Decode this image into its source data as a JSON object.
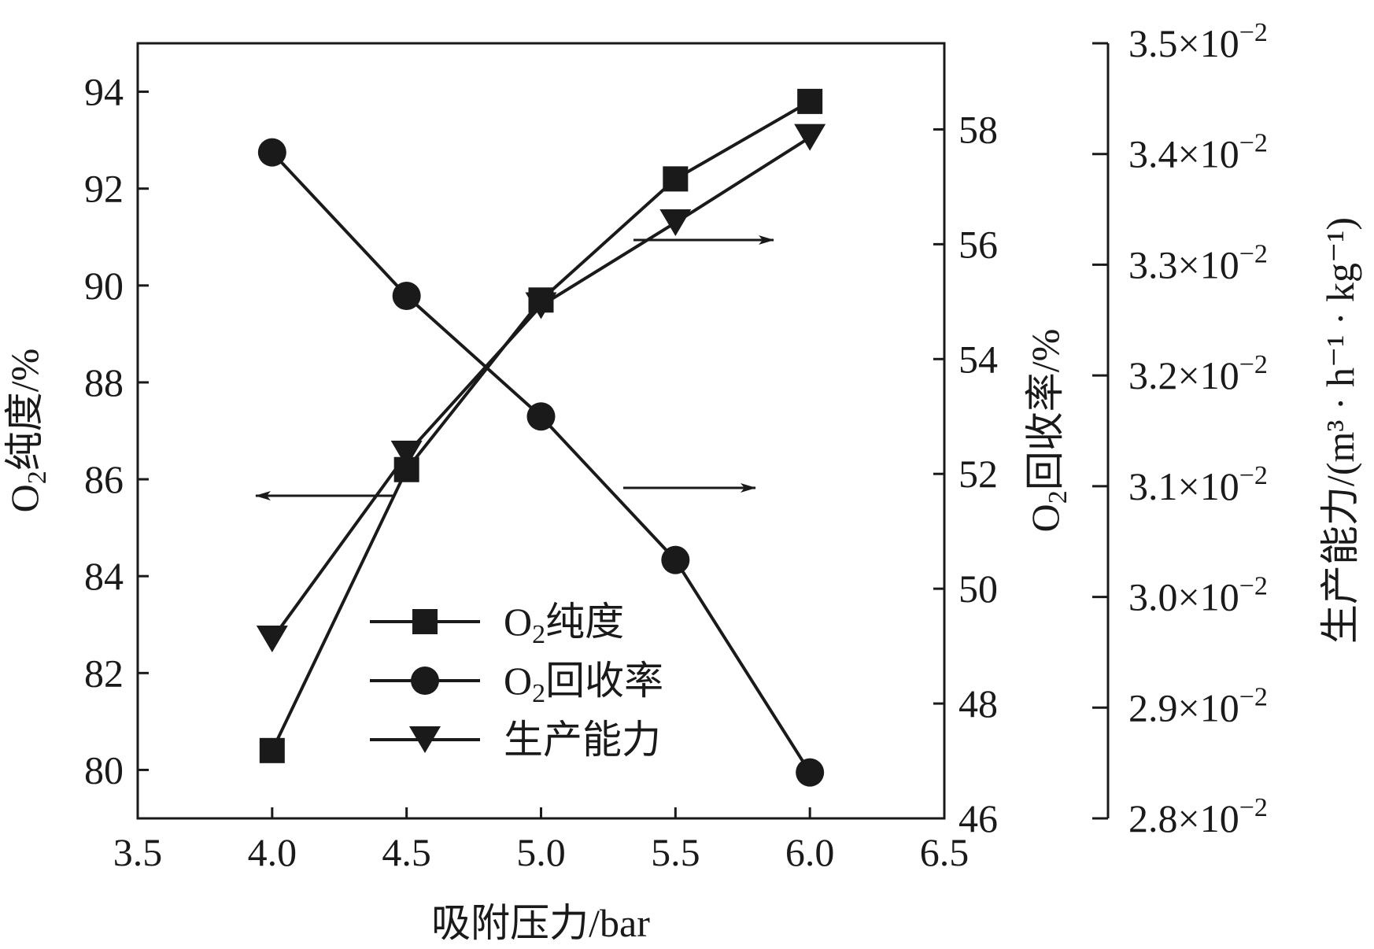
{
  "chart_data": {
    "type": "line",
    "x": [
      4.0,
      4.5,
      5.0,
      5.5,
      6.0
    ],
    "xlabel": "吸附压力/bar",
    "xlim": [
      3.5,
      6.5
    ],
    "xticks": [
      "3.5",
      "4.0",
      "4.5",
      "5.0",
      "5.5",
      "6.0",
      "6.5"
    ],
    "grid": false,
    "legend_position": "bottom-center",
    "axes": {
      "left": {
        "label_main": "O",
        "label_sub": "2",
        "label_rest": "纯度/%",
        "ylim": [
          79,
          95
        ],
        "ticks": [
          "80",
          "82",
          "84",
          "86",
          "88",
          "90",
          "92",
          "94"
        ]
      },
      "right1": {
        "label_main": "O",
        "label_sub": "2",
        "label_rest": "回收率/%",
        "ylim": [
          46,
          59.5
        ],
        "ticks": [
          "46",
          "48",
          "50",
          "52",
          "54",
          "56",
          "58"
        ]
      },
      "right2": {
        "label": "生产能力/(m³ · h⁻¹ · kg⁻¹)",
        "ylim_mantissa": [
          2.8,
          3.5
        ],
        "tick_mantissas": [
          "2.8",
          "2.9",
          "3.0",
          "3.1",
          "3.2",
          "3.3",
          "3.4",
          "3.5"
        ],
        "tick_suffix": "×10",
        "tick_exponent": "−2"
      }
    },
    "series": [
      {
        "name": "O₂纯度",
        "legend_main": "O",
        "legend_sub": "2",
        "legend_rest": "纯度",
        "axis": "left",
        "marker": "square",
        "values": [
          80.4,
          86.2,
          89.7,
          92.2,
          93.8
        ]
      },
      {
        "name": "O₂回收率",
        "legend_main": "O",
        "legend_sub": "2",
        "legend_rest": "回收率",
        "axis": "right1",
        "marker": "circle",
        "values": [
          57.6,
          55.1,
          53.0,
          50.5,
          46.8
        ]
      },
      {
        "name": "生产能力",
        "legend_main": "",
        "legend_sub": "",
        "legend_rest": "生产能力",
        "axis": "right2",
        "marker": "triangle-down",
        "values_mantissa": [
          2.962,
          3.129,
          3.263,
          3.338,
          3.415
        ]
      }
    ],
    "annotations": [
      {
        "direction": "left",
        "points_to": "left"
      },
      {
        "direction": "right",
        "points_to": "right1"
      },
      {
        "direction": "right",
        "points_to": "right2"
      }
    ],
    "colors": {
      "ink": "#1a1a1a",
      "background": "#ffffff"
    }
  }
}
